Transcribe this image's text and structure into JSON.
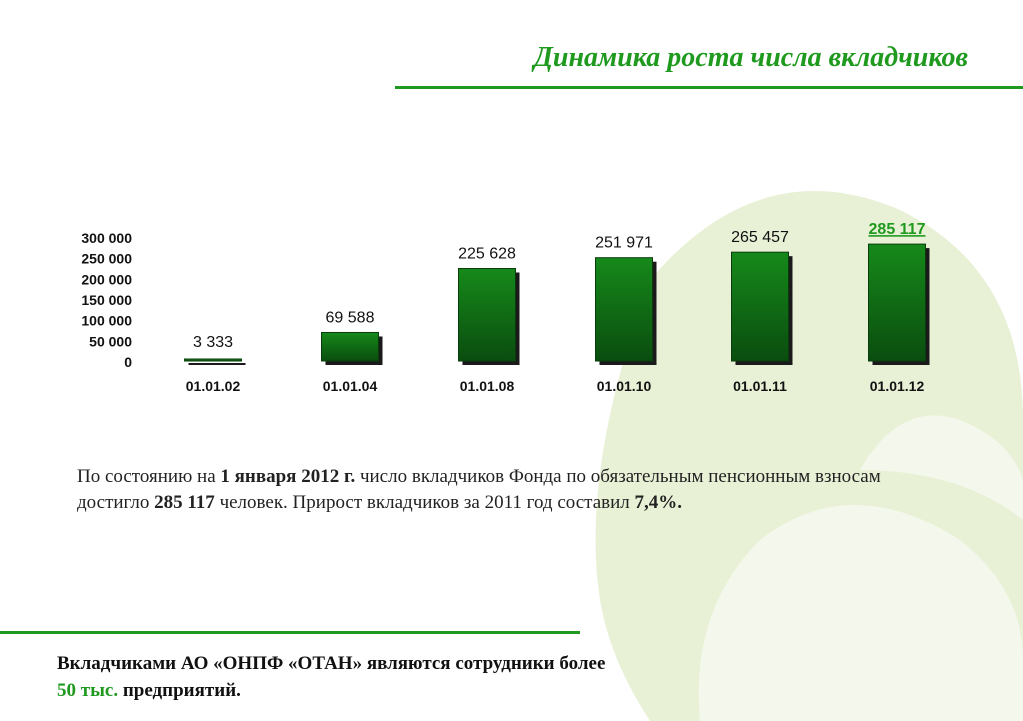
{
  "header": {
    "title": "Динамика роста числа вкладчиков"
  },
  "colors": {
    "accent": "#1f9a1f",
    "bar_top": "#16891a",
    "bar_bottom": "#0a4d0f",
    "highlight_label": "#1f9a1f",
    "background_logo": "#e8f1d6"
  },
  "chart_data": {
    "type": "bar",
    "categories": [
      "01.01.02",
      "01.01.04",
      "01.01.08",
      "01.01.10",
      "01.01.11",
      "01.01.12"
    ],
    "values": [
      3333,
      69588,
      225628,
      251971,
      265457,
      285117
    ],
    "value_labels": [
      "3 333",
      "69 588",
      "225 628",
      "251 971",
      "265 457",
      "285 117"
    ],
    "highlight_index": 5,
    "y_ticks": [
      "300 000",
      "250 000",
      "200 000",
      "150 000",
      "100 000",
      "50 000",
      "0"
    ],
    "ylim": [
      0,
      300000
    ],
    "grid": false,
    "legend": "none",
    "title": "",
    "xlabel": "",
    "ylabel": ""
  },
  "body": {
    "p_before_date": "По состоянию на ",
    "p_date": "1 января 2012 г.",
    "p_mid": " число вкладчиков Фонда по обязательным пенсионным взносам достигло ",
    "p_count": "285 117",
    "p_after_count": " человек. Прирост вкладчиков за 2011 год составил ",
    "p_growth": "7,4%."
  },
  "footer": {
    "line_start": "Вкладчиками АО «ОНПФ «ОТАН» являются сотрудники более ",
    "accent_text": "50 тыс.",
    "line_end": "  предприятий."
  }
}
